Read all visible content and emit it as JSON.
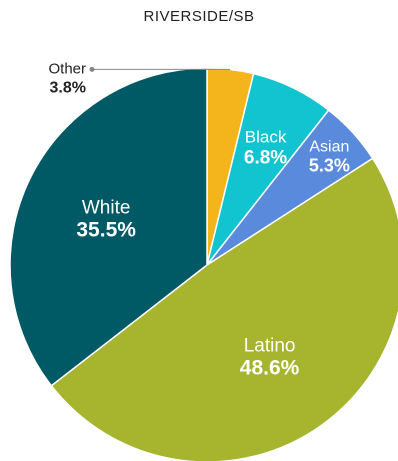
{
  "chart_data": {
    "type": "pie",
    "title": "RIVERSIDE/SB",
    "start_at_top": true,
    "direction": "clockwise",
    "slices": [
      {
        "label": "Other",
        "value": 3.8,
        "display": "3.8%",
        "color": "#F4B41C"
      },
      {
        "label": "Black",
        "value": 6.8,
        "display": "6.8%",
        "color": "#12C4D0"
      },
      {
        "label": "Asian",
        "value": 5.3,
        "display": "5.3%",
        "color": "#5A8ADB"
      },
      {
        "label": "Latino",
        "value": 48.6,
        "display": "48.6%",
        "color": "#A6B42E"
      },
      {
        "label": "White",
        "value": 35.5,
        "display": "35.5%",
        "color": "#005A66"
      }
    ]
  }
}
